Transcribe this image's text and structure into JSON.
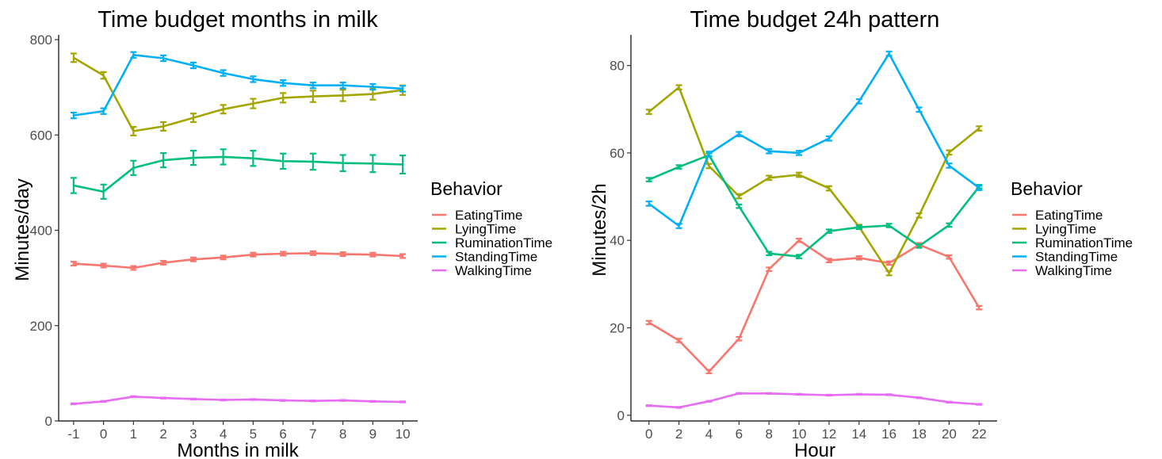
{
  "chart_data": [
    {
      "type": "line",
      "title": "Time budget months in milk",
      "xlabel": "Months in milk",
      "ylabel": "Minutes/day",
      "x": [
        -1,
        0,
        1,
        2,
        3,
        4,
        5,
        6,
        7,
        8,
        9,
        10
      ],
      "x_tick_labels": [
        "-1",
        "0",
        "1",
        "2",
        "3",
        "4",
        "5",
        "6",
        "7",
        "8",
        "9",
        "10"
      ],
      "xlim": [
        -1.5,
        10.5
      ],
      "ylim": [
        0,
        810
      ],
      "y_ticks": [
        0,
        200,
        400,
        600,
        800
      ],
      "y_tick_labels": [
        "0",
        "200",
        "400",
        "600",
        "800"
      ],
      "grid": false,
      "series": [
        {
          "name": "EatingTime",
          "color": "#F8766D",
          "values": [
            330,
            326,
            321,
            332,
            339,
            343,
            349,
            351,
            352,
            350,
            349,
            346
          ],
          "errors": [
            4,
            4,
            4,
            4,
            4,
            4,
            4,
            4,
            4,
            4,
            4,
            4
          ]
        },
        {
          "name": "LyingTime",
          "color": "#A3A500",
          "values": [
            762,
            725,
            608,
            618,
            636,
            654,
            666,
            678,
            681,
            683,
            686,
            694
          ],
          "errors": [
            9,
            7,
            9,
            9,
            9,
            9,
            10,
            10,
            12,
            12,
            12,
            10
          ]
        },
        {
          "name": "RuminationTime",
          "color": "#00BF7D",
          "values": [
            494,
            481,
            531,
            547,
            552,
            554,
            551,
            545,
            544,
            541,
            540,
            538
          ],
          "errors": [
            16,
            15,
            15,
            15,
            15,
            16,
            16,
            16,
            17,
            17,
            18,
            19
          ]
        },
        {
          "name": "StandingTime",
          "color": "#00B0F6",
          "values": [
            641,
            650,
            768,
            761,
            746,
            730,
            717,
            709,
            704,
            704,
            701,
            697
          ],
          "errors": [
            6,
            6,
            6,
            6,
            6,
            6,
            6,
            6,
            6,
            6,
            6,
            6
          ]
        },
        {
          "name": "WalkingTime",
          "color": "#E76BF3",
          "values": [
            36,
            41,
            51,
            48,
            46,
            44,
            45,
            43,
            42,
            43,
            41,
            40
          ],
          "errors": [
            1,
            1,
            1,
            1,
            1,
            1,
            1,
            1,
            1,
            1,
            1,
            1
          ]
        }
      ],
      "legend": {
        "title": "Behavior",
        "position": "right"
      }
    },
    {
      "type": "line",
      "title": "Time budget 24h pattern",
      "xlabel": "Hour",
      "ylabel": "Minutes/2h",
      "x": [
        0,
        2,
        4,
        6,
        8,
        10,
        12,
        14,
        16,
        18,
        20,
        22
      ],
      "x_tick_labels": [
        "0",
        "2",
        "4",
        "6",
        "8",
        "10",
        "12",
        "14",
        "16",
        "18",
        "20",
        "22"
      ],
      "xlim": [
        -1.2,
        23.2
      ],
      "ylim": [
        -1.3,
        87
      ],
      "y_ticks": [
        0,
        20,
        40,
        60,
        80
      ],
      "y_tick_labels": [
        "0",
        "20",
        "40",
        "60",
        "80"
      ],
      "grid": false,
      "series": [
        {
          "name": "EatingTime",
          "color": "#F8766D",
          "values": [
            21.2,
            17.1,
            10.0,
            17.5,
            33.4,
            40.0,
            35.4,
            36.0,
            34.8,
            39.0,
            36.2,
            24.6
          ],
          "errors": [
            0.4,
            0.4,
            0.4,
            0.4,
            0.4,
            0.4,
            0.4,
            0.4,
            0.4,
            0.4,
            0.4,
            0.4
          ]
        },
        {
          "name": "LyingTime",
          "color": "#A3A500",
          "values": [
            69.4,
            75.0,
            57.0,
            50.1,
            54.3,
            55.0,
            51.9,
            43.1,
            32.5,
            45.7,
            60.1,
            65.6
          ],
          "errors": [
            0.5,
            0.5,
            0.5,
            0.5,
            0.5,
            0.5,
            0.5,
            0.5,
            0.5,
            0.5,
            0.5,
            0.5
          ]
        },
        {
          "name": "RuminationTime",
          "color": "#00BF7D",
          "values": [
            53.9,
            56.8,
            59.5,
            47.8,
            37.0,
            36.3,
            42.1,
            43.0,
            43.4,
            38.7,
            43.5,
            52.3
          ],
          "errors": [
            0.4,
            0.4,
            0.4,
            0.4,
            0.4,
            0.4,
            0.4,
            0.4,
            0.4,
            0.4,
            0.4,
            0.4
          ]
        },
        {
          "name": "StandingTime",
          "color": "#00B0F6",
          "values": [
            48.4,
            43.3,
            59.8,
            64.3,
            60.4,
            60.0,
            63.3,
            71.8,
            82.7,
            69.9,
            57.1,
            52.0
          ],
          "errors": [
            0.5,
            0.5,
            0.5,
            0.5,
            0.5,
            0.5,
            0.5,
            0.5,
            0.5,
            0.5,
            0.5,
            0.5
          ]
        },
        {
          "name": "WalkingTime",
          "color": "#E76BF3",
          "values": [
            2.2,
            1.8,
            3.2,
            5.0,
            5.0,
            4.8,
            4.6,
            4.8,
            4.7,
            4.0,
            3.0,
            2.5
          ],
          "errors": [
            0.1,
            0.1,
            0.1,
            0.1,
            0.1,
            0.1,
            0.1,
            0.1,
            0.1,
            0.1,
            0.1,
            0.1
          ]
        }
      ],
      "legend": {
        "title": "Behavior",
        "position": "right"
      }
    }
  ]
}
